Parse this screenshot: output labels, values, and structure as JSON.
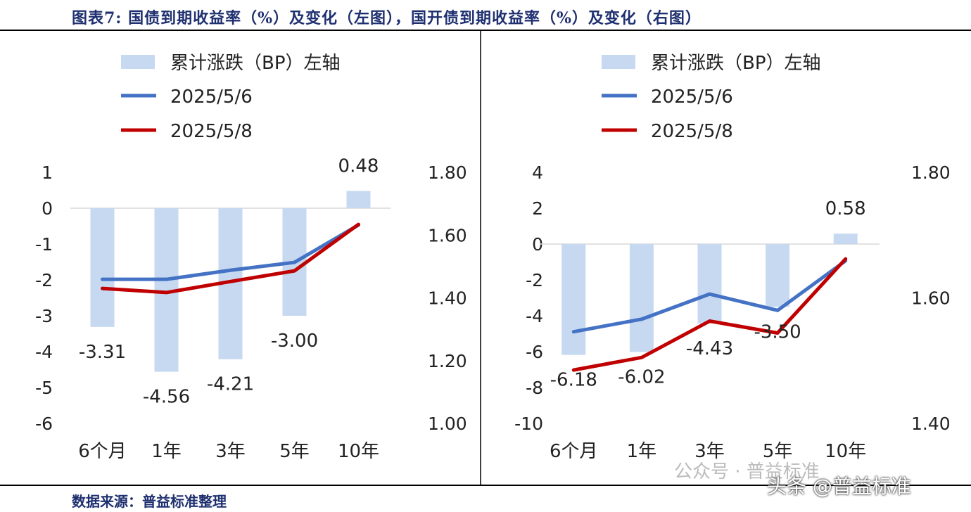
{
  "title": "图表7:  国债到期收益率（%）及变化（左图），国开债到期收益率（%）及变化（右图）",
  "footer": "数据来源：普益标准整理",
  "watermark": {
    "wechat": "公众号 · 普益标准",
    "toutiao": "头条 @普益标准"
  },
  "colors": {
    "bar": "#c6d9f1",
    "line1": "#4472c4",
    "line2": "#c00000",
    "title": "#1f3070"
  },
  "chart_data": [
    {
      "type": "bar+line",
      "categories": [
        "6个月",
        "1年",
        "3年",
        "5年",
        "10年"
      ],
      "legend": [
        "累计涨跌（BP）左轴",
        "2025/5/6",
        "2025/5/8"
      ],
      "legend_position": "top-left",
      "bars": {
        "name": "累计涨跌（BP）左轴",
        "values": [
          -3.31,
          -4.56,
          -4.21,
          -3.0,
          0.48
        ],
        "labels": [
          "-3.31",
          "-4.56",
          "-4.21",
          "-3.00",
          "0.48"
        ]
      },
      "series": [
        {
          "name": "2025/5/6",
          "values": [
            1.459,
            1.459,
            1.488,
            1.513,
            1.632
          ]
        },
        {
          "name": "2025/5/8",
          "values": [
            1.43,
            1.417,
            1.452,
            1.486,
            1.634
          ]
        }
      ],
      "y_left": {
        "ylim": [
          -6,
          1
        ],
        "ticks": [
          "1",
          "0",
          "-1",
          "-2",
          "-3",
          "-4",
          "-5",
          "-6"
        ]
      },
      "y_right": {
        "ylim": [
          1.0,
          1.8
        ],
        "ticks": [
          "1.80",
          "1.60",
          "1.40",
          "1.20",
          "1.00"
        ]
      },
      "grid": false
    },
    {
      "type": "bar+line",
      "categories": [
        "6个月",
        "1年",
        "3年",
        "5年",
        "10年"
      ],
      "legend": [
        "累计涨跌（BP）左轴",
        "2025/5/6",
        "2025/5/8"
      ],
      "legend_position": "top-left",
      "bars": {
        "name": "累计涨跌（BP）左轴",
        "values": [
          -6.18,
          -6.02,
          -4.43,
          -3.5,
          0.58
        ],
        "labels": [
          "-6.18",
          "-6.02",
          "-4.43",
          "-3.50",
          "0.58"
        ]
      },
      "series": [
        {
          "name": "2025/5/6",
          "values": [
            1.546,
            1.566,
            1.606,
            1.58,
            1.659
          ]
        },
        {
          "name": "2025/5/8",
          "values": [
            1.485,
            1.505,
            1.563,
            1.544,
            1.662
          ]
        }
      ],
      "y_left": {
        "ylim": [
          -10,
          4
        ],
        "ticks": [
          "4",
          "2",
          "0",
          "-2",
          "-4",
          "-6",
          "-8",
          "-10"
        ]
      },
      "y_right": {
        "ylim": [
          1.4,
          1.8
        ],
        "ticks": [
          "1.80",
          "1.60",
          "1.40"
        ]
      },
      "grid": false
    }
  ]
}
